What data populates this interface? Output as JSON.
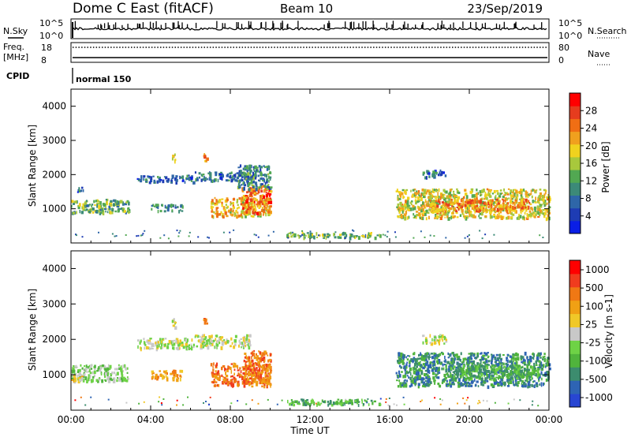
{
  "header": {
    "site": "Dome C East (fitACF)",
    "beam": "Beam 10",
    "date": "23/Sep/2019"
  },
  "info_panels": {
    "nsky_label": "N.Sky",
    "nsky_ticks": [
      "10^5",
      "10^0"
    ],
    "nsearch_label": "N.Search",
    "nsearch_ticks": [
      "10^5",
      "10^0"
    ],
    "freq_label": "Freq.",
    "freq_unit": "[MHz]",
    "freq_ticks": [
      "18",
      "8"
    ],
    "nave_label": "Nave",
    "nave_ticks": [
      "80",
      "0"
    ],
    "cpid_label": "CPID",
    "cpid_value": "normal 150"
  },
  "colors": {
    "power": [
      "#0a1ee6",
      "#1e3cb4",
      "#2e66a8",
      "#3c8a78",
      "#52a852",
      "#a8c83c",
      "#f0d21e",
      "#f0a01e",
      "#f06e14",
      "#e63c1e",
      "#ff0000"
    ],
    "velocity": [
      "#2846d2",
      "#2e64b4",
      "#3c8c6e",
      "#50b43c",
      "#6ed246",
      "#c8c8c8",
      "#f0c828",
      "#f0a014",
      "#f07814",
      "#f03c1e",
      "#ff0000"
    ]
  },
  "chart_data": [
    {
      "type": "heatmap",
      "name": "power",
      "ylabel": "Slant Range [km]",
      "xlabel": "Time UT",
      "x_ticks": [
        "00:00",
        "04:00",
        "08:00",
        "12:00",
        "16:00",
        "20:00",
        "00:00"
      ],
      "xlim_hours": [
        0,
        24
      ],
      "ylim": [
        0,
        4500
      ],
      "y_ticks": [
        1000,
        2000,
        3000,
        4000
      ],
      "colorbar_label": "Power [dB]",
      "colorbar_ticks": [
        "4",
        "8",
        "12",
        "16",
        "20",
        "24",
        "28"
      ],
      "colorbar_range": [
        0,
        32
      ],
      "regions": [
        {
          "t0": 0.0,
          "t1": 2.9,
          "r0": 900,
          "r1": 1300,
          "level": 13
        },
        {
          "t0": 0.3,
          "t1": 0.6,
          "r0": 1500,
          "r1": 1650,
          "level": 7
        },
        {
          "t0": 3.3,
          "t1": 6.2,
          "r0": 1800,
          "r1": 2000,
          "level": 6
        },
        {
          "t0": 4.0,
          "t1": 5.6,
          "r0": 950,
          "r1": 1150,
          "level": 8
        },
        {
          "t0": 5.0,
          "t1": 5.2,
          "r0": 2400,
          "r1": 2650,
          "level": 17
        },
        {
          "t0": 6.2,
          "t1": 9.0,
          "r0": 1850,
          "r1": 2100,
          "level": 7
        },
        {
          "t0": 6.6,
          "t1": 6.8,
          "r0": 2400,
          "r1": 2650,
          "level": 24
        },
        {
          "t0": 7.0,
          "t1": 10.0,
          "r0": 800,
          "r1": 1350,
          "level": 20
        },
        {
          "t0": 8.5,
          "t1": 10.0,
          "r0": 900,
          "r1": 1700,
          "level": 26
        },
        {
          "t0": 8.3,
          "t1": 10.0,
          "r0": 1600,
          "r1": 2300,
          "level": 9
        },
        {
          "t0": 10.8,
          "t1": 15.5,
          "r0": 180,
          "r1": 330,
          "level": 14
        },
        {
          "t0": 16.3,
          "t1": 24.0,
          "r0": 750,
          "r1": 1600,
          "level": 18
        },
        {
          "t0": 18.0,
          "t1": 23.0,
          "r0": 950,
          "r1": 1300,
          "level": 24
        },
        {
          "t0": 17.6,
          "t1": 18.8,
          "r0": 1950,
          "r1": 2150,
          "level": 6
        }
      ]
    },
    {
      "type": "heatmap",
      "name": "velocity",
      "ylabel": "Slant Range [km]",
      "xlabel": "Time UT",
      "x_ticks": [
        "00:00",
        "04:00",
        "08:00",
        "12:00",
        "16:00",
        "20:00",
        "00:00"
      ],
      "xlim_hours": [
        0,
        24
      ],
      "ylim": [
        0,
        4500
      ],
      "y_ticks": [
        1000,
        2000,
        3000,
        4000
      ],
      "colorbar_label": "Velocity [m s-1]",
      "colorbar_ticks": [
        "1000",
        "500",
        "100",
        "25",
        "-25",
        "-100",
        "-500",
        "-1000"
      ],
      "regions": [
        {
          "t0": 0.0,
          "t1": 2.9,
          "r0": 850,
          "r1": 1300,
          "level": 4
        },
        {
          "t0": 0.0,
          "t1": 0.5,
          "r0": 800,
          "r1": 1050,
          "level": 6
        },
        {
          "t0": 3.3,
          "t1": 6.2,
          "r0": 1750,
          "r1": 2050,
          "level": 5
        },
        {
          "t0": 4.0,
          "t1": 5.6,
          "r0": 900,
          "r1": 1150,
          "level": 7
        },
        {
          "t0": 5.0,
          "t1": 5.2,
          "r0": 2350,
          "r1": 2650,
          "level": 5
        },
        {
          "t0": 6.2,
          "t1": 9.0,
          "r0": 1800,
          "r1": 2150,
          "level": 5
        },
        {
          "t0": 6.6,
          "t1": 6.8,
          "r0": 2400,
          "r1": 2650,
          "level": 8
        },
        {
          "t0": 7.0,
          "t1": 10.0,
          "r0": 700,
          "r1": 1350,
          "level": 8
        },
        {
          "t0": 8.5,
          "t1": 10.0,
          "r0": 800,
          "r1": 1700,
          "level": 8
        },
        {
          "t0": 10.8,
          "t1": 15.5,
          "r0": 180,
          "r1": 330,
          "level": 3
        },
        {
          "t0": 16.3,
          "t1": 24.0,
          "r0": 700,
          "r1": 1650,
          "level": 2
        },
        {
          "t0": 19.0,
          "t1": 23.5,
          "r0": 900,
          "r1": 1300,
          "level": 3
        },
        {
          "t0": 17.6,
          "t1": 18.8,
          "r0": 1900,
          "r1": 2150,
          "level": 5
        }
      ]
    }
  ]
}
